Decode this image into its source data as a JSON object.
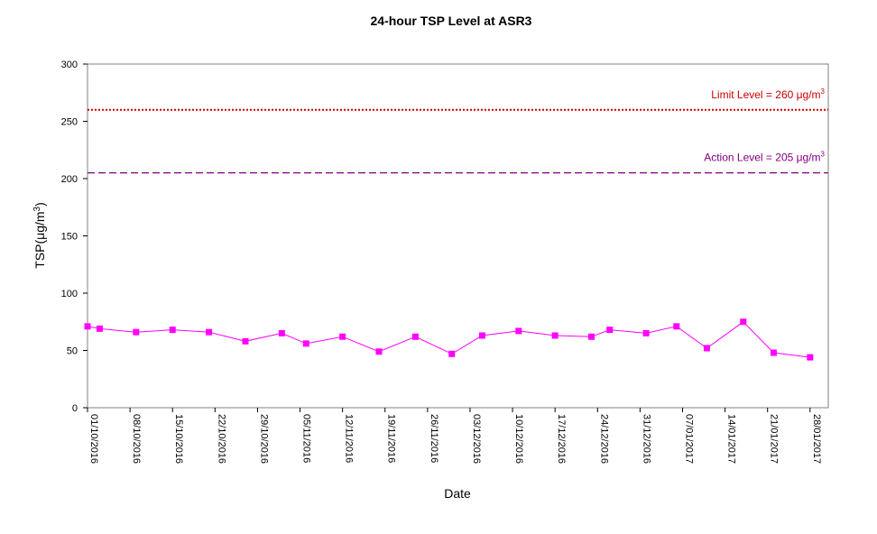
{
  "chart_data": {
    "type": "line",
    "title": "24-hour TSP Level at ASR3",
    "xlabel": "Date",
    "ylabel_main": "TSP(μg/m",
    "ylabel_sup": "3",
    "ylabel_close": ")",
    "ylim": [
      0,
      300
    ],
    "yticks": [
      0,
      50,
      100,
      150,
      200,
      250,
      300
    ],
    "x_range": [
      "01/10/2016",
      "31/01/2017"
    ],
    "x_ticks": [
      "01/10/2016",
      "08/10/2016",
      "15/10/2016",
      "22/10/2016",
      "29/10/2016",
      "05/11/2016",
      "12/11/2016",
      "19/11/2016",
      "26/11/2016",
      "03/12/2016",
      "10/12/2016",
      "17/12/2016",
      "24/12/2016",
      "31/12/2016",
      "07/01/2017",
      "14/01/2017",
      "21/01/2017",
      "28/01/2017"
    ],
    "grid": false,
    "series": [
      {
        "color": "#FF00FF",
        "marker": "square",
        "points": [
          {
            "x": "01/10/2016",
            "y": 71
          },
          {
            "x": "03/10/2016",
            "y": 69
          },
          {
            "x": "09/10/2016",
            "y": 66
          },
          {
            "x": "15/10/2016",
            "y": 68
          },
          {
            "x": "21/10/2016",
            "y": 66
          },
          {
            "x": "27/10/2016",
            "y": 58
          },
          {
            "x": "02/11/2016",
            "y": 65
          },
          {
            "x": "06/11/2016",
            "y": 56
          },
          {
            "x": "12/11/2016",
            "y": 62
          },
          {
            "x": "18/11/2016",
            "y": 49
          },
          {
            "x": "24/11/2016",
            "y": 62
          },
          {
            "x": "30/11/2016",
            "y": 47
          },
          {
            "x": "05/12/2016",
            "y": 63
          },
          {
            "x": "11/12/2016",
            "y": 67
          },
          {
            "x": "17/12/2016",
            "y": 63
          },
          {
            "x": "23/12/2016",
            "y": 62
          },
          {
            "x": "26/12/2016",
            "y": 68
          },
          {
            "x": "01/01/2017",
            "y": 65
          },
          {
            "x": "06/01/2017",
            "y": 71
          },
          {
            "x": "11/01/2017",
            "y": 52
          },
          {
            "x": "17/01/2017",
            "y": 75
          },
          {
            "x": "22/01/2017",
            "y": 48
          },
          {
            "x": "28/01/2017",
            "y": 44
          }
        ]
      }
    ],
    "reference_lines": [
      {
        "label": "Limit Level = 260 μg/m",
        "sup": "3",
        "value": 260,
        "color": "#CC0000",
        "style": "dotted"
      },
      {
        "label": "Action Level = 205 μg/m",
        "sup": "3",
        "value": 205,
        "color": "#800080",
        "style": "dashed"
      }
    ]
  }
}
